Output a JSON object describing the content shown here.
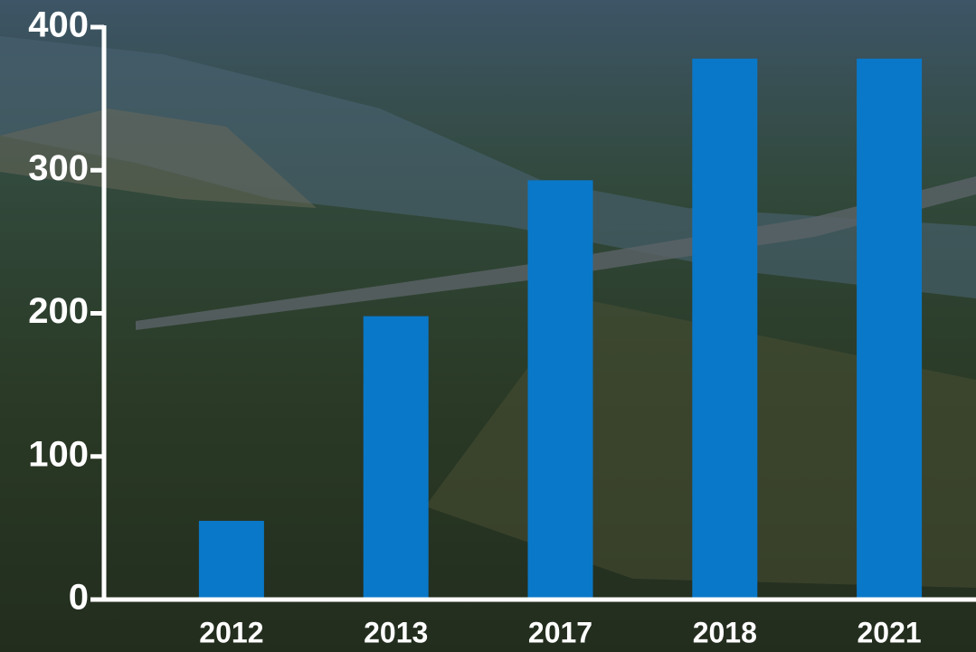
{
  "chart_data": {
    "type": "bar",
    "categories": [
      "2012",
      "2013",
      "2017",
      "2018",
      "2021"
    ],
    "values": [
      55,
      198,
      293,
      378,
      378
    ],
    "color": "#0a78c8",
    "ylim": [
      0,
      400
    ],
    "yticks": [
      0,
      100,
      200,
      300,
      400
    ],
    "grid": false
  }
}
